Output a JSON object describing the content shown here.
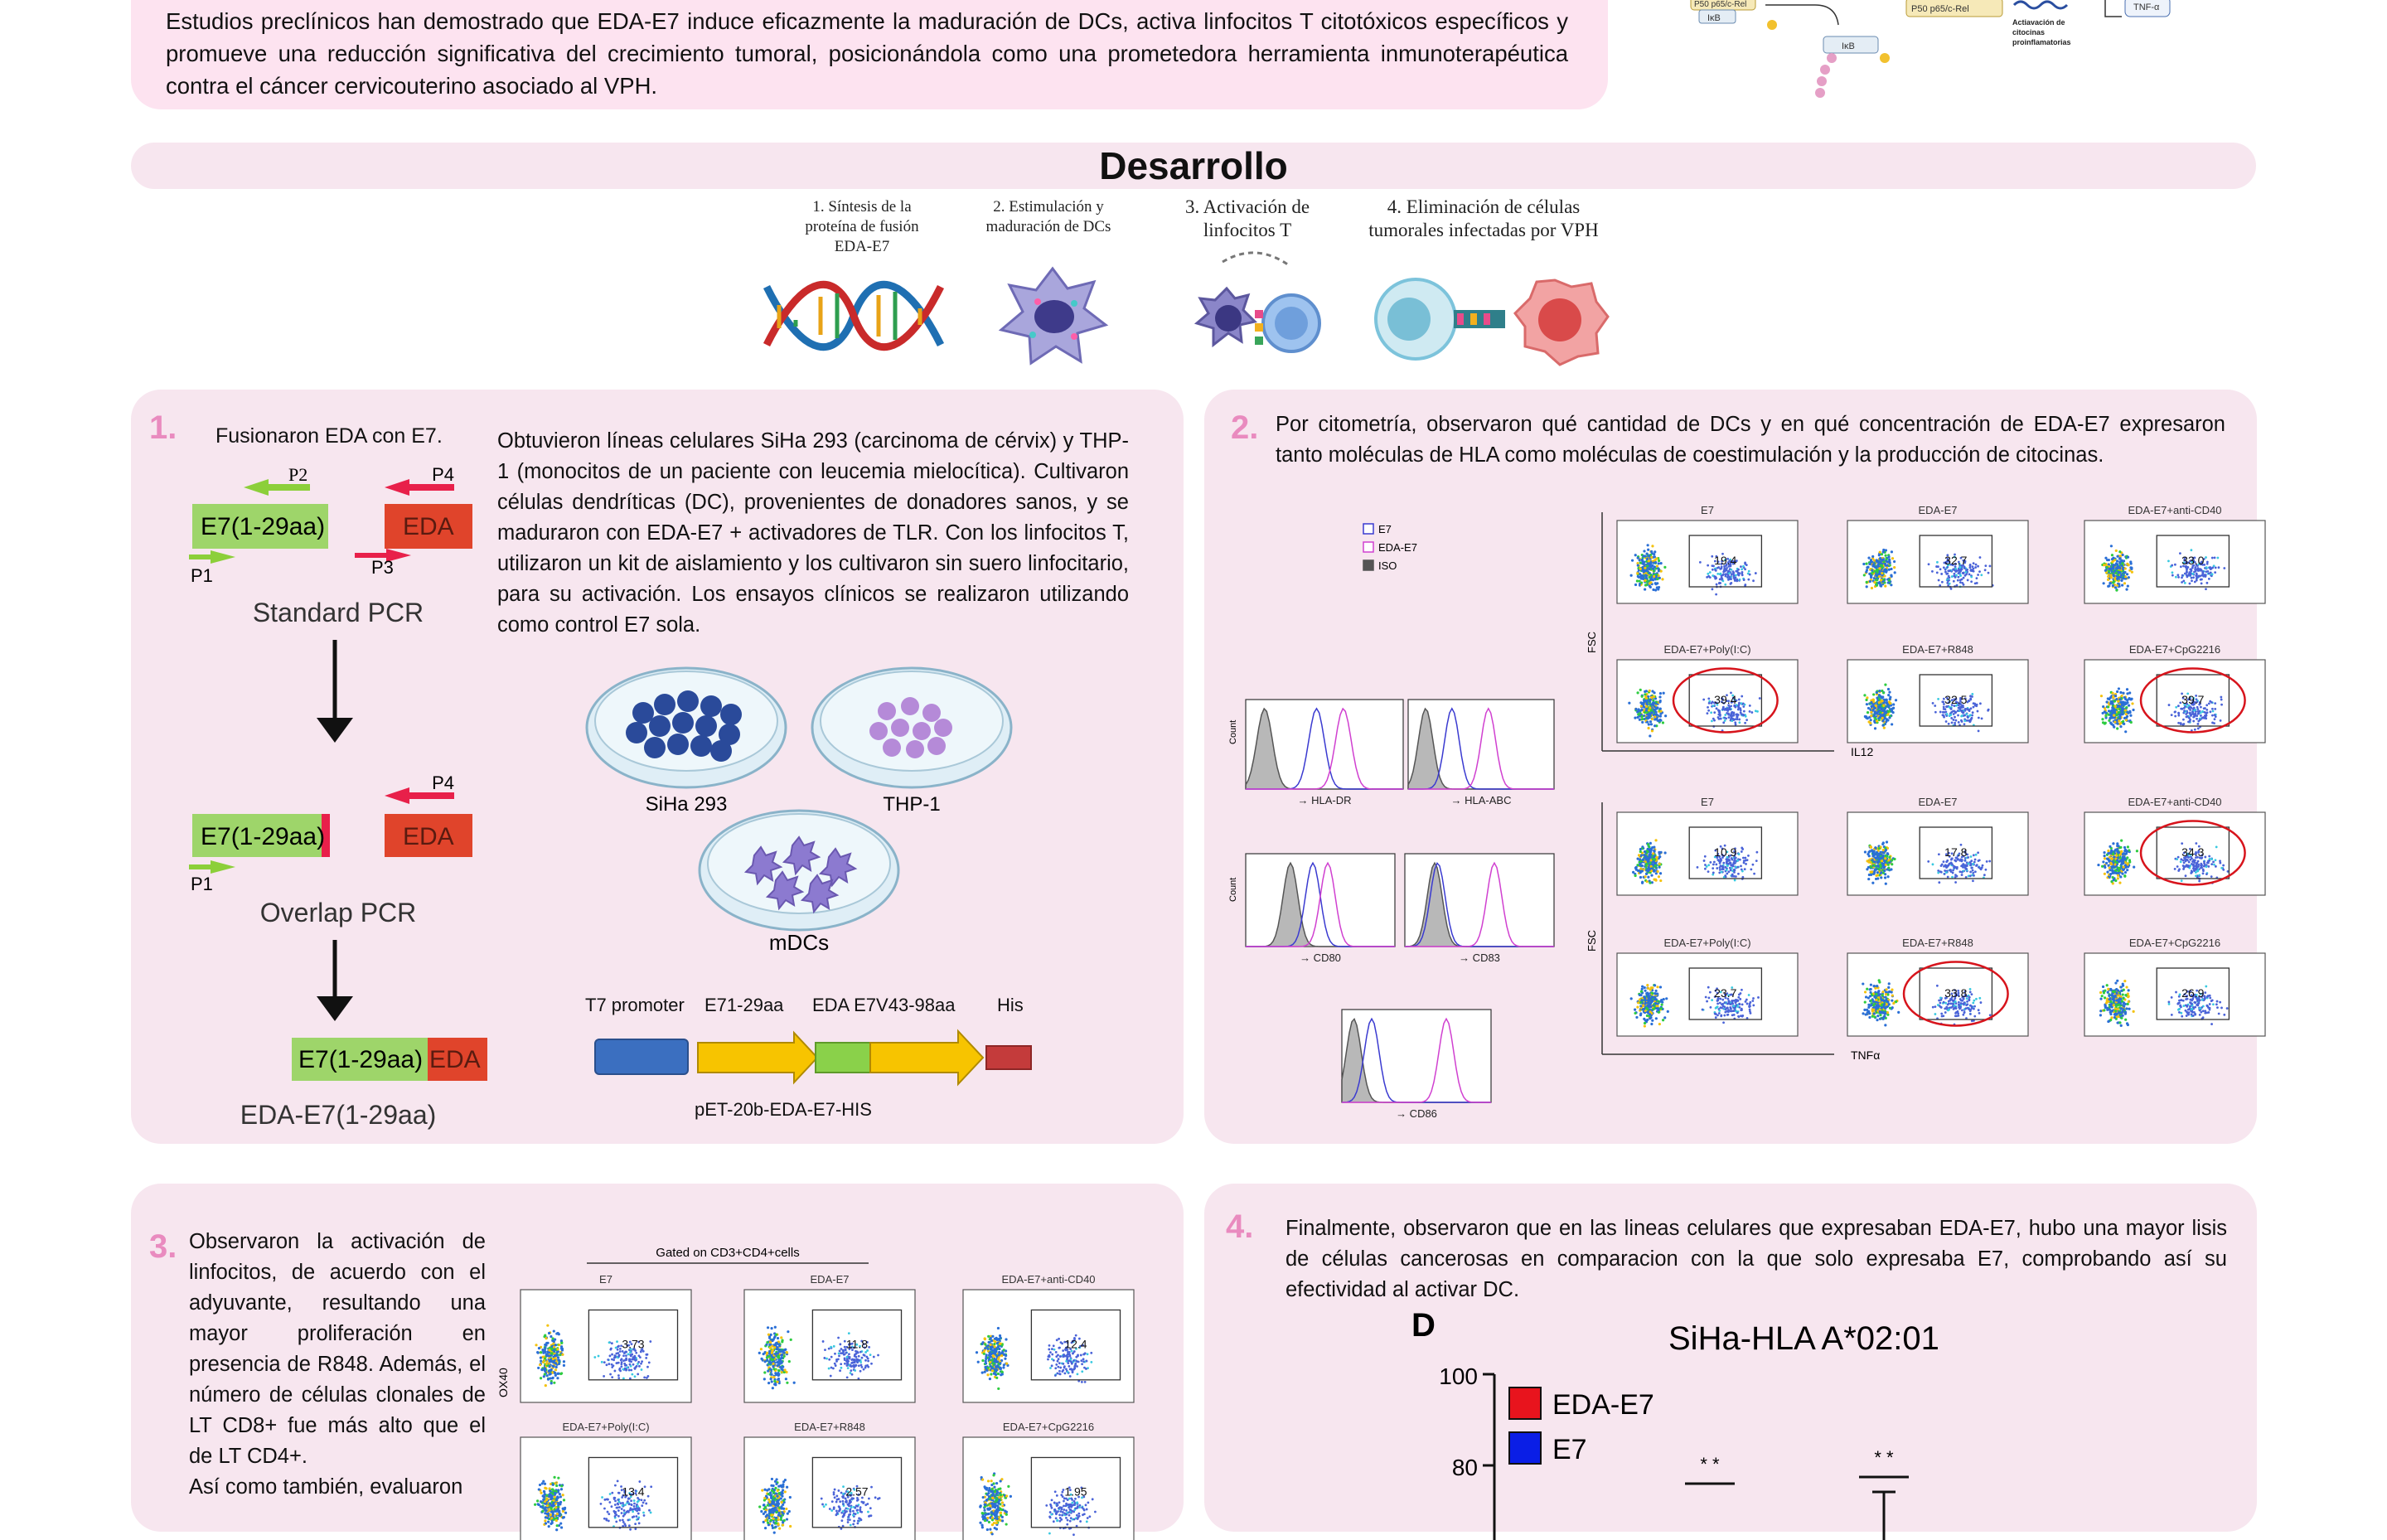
{
  "intro": {
    "text": "Estudios preclínicos han demostrado que EDA-E7 induce eficazmente la maduración de DCs, activa linfocitos T citotóxicos específicos y promueve una reducción significativa del crecimiento tumoral, posicionándola como una prometedora herramienta inmunoterapéutica contra el cáncer cervicouterino asociado al VPH."
  },
  "pathway": {
    "p50p65": "P50 p65/c-Rel",
    "ikb1": "IκB",
    "ikb2": "IκB",
    "tnf": "TNF-α",
    "cytokines": "Actiavación de citocinas proinflamatorias",
    "top_left": "P50 p65/c-Rel"
  },
  "section": {
    "title": "Desarrollo"
  },
  "steps": [
    {
      "label": "1. Síntesis de la proteína de fusión EDA-E7"
    },
    {
      "label": "2. Estimulación y maduración de DCs"
    },
    {
      "label": "3. Activación de linfocitos T"
    },
    {
      "label": "4. Eliminación de células tumorales infectadas por VPH"
    }
  ],
  "panel1": {
    "number": "1.",
    "heading": "Fusionaron EDA con E7.",
    "body": "Obtuvieron líneas celulares SiHa 293 (carcinoma de cérvix) y THP-1 (monocitos de un paciente con leucemia mielocítica). Cultivaron células dendríticas (DC), provenientes de donadores sanos, y se maduraron con EDA-E7 + activadores de TLR. Con los linfocitos T, utilizaron un kit de aislamiento y los cultivaron sin suero linfocitario, para su activación. Los ensayos clínicos se realizaron utilizando como control E7 sola.",
    "pcr": {
      "e7": "E7(1-29aa)",
      "eda": "EDA",
      "p1": "P1",
      "p2": "P2",
      "p3": "P3",
      "p4": "P4",
      "standard": "Standard PCR",
      "overlap": "Overlap PCR",
      "fusion": "EDA-E7(1-29aa)"
    },
    "dishes": {
      "siha": "SiHa 293",
      "thp": "THP-1",
      "mdc": "mDCs"
    },
    "construct": {
      "t7": "T7 promoter",
      "e7": "E71-29aa",
      "eda": "EDA E7V43-98aa",
      "his": "His",
      "plasmid": "pET-20b-EDA-E7-HIS"
    }
  },
  "panel2": {
    "number": "2.",
    "body": "Por citometría, observaron qué cantidad de DCs y en qué concentración de EDA-E7 expresaron tanto moléculas de HLA como moléculas de coestimulación y la producción de citocinas.",
    "legend": [
      "E7",
      "EDA-E7",
      "ISO"
    ],
    "histograms": [
      "HLA-DR",
      "HLA-ABC",
      "CD80",
      "CD83",
      "CD86"
    ],
    "count_label": "Count",
    "fsc_label": "FSC",
    "il12_axis": "IL12",
    "tnf_axis": "TNFα",
    "il12_plots": [
      {
        "title": "E7",
        "value": "19.4"
      },
      {
        "title": "EDA-E7",
        "value": "32.7"
      },
      {
        "title": "EDA-E7+anti-CD40",
        "value": "33.0"
      },
      {
        "title": "EDA-E7+Poly(I:C)",
        "value": "39.4"
      },
      {
        "title": "EDA-E7+R848",
        "value": "32.5"
      },
      {
        "title": "EDA-E7+CpG2216",
        "value": "39.7"
      }
    ],
    "tnf_plots": [
      {
        "title": "E7",
        "value": "10.9"
      },
      {
        "title": "EDA-E7",
        "value": "17.8"
      },
      {
        "title": "EDA-E7+anti-CD40",
        "value": "34.3"
      },
      {
        "title": "EDA-E7+Poly(I:C)",
        "value": "23.7"
      },
      {
        "title": "EDA-E7+R848",
        "value": "33.8"
      },
      {
        "title": "EDA-E7+CpG2216",
        "value": "26.9"
      }
    ]
  },
  "panel3": {
    "number": "3.",
    "body": "Observaron la activación de linfocitos, de acuerdo con el adyuvante, resultando una mayor proliferación en presencia de R848. Además, el número de células clonales de LT CD8+ fue más alto que el de LT CD4+.",
    "body_cont": "Así como también, evaluaron",
    "gated": "Gated on CD3+CD4+cells",
    "ox40": "OX40",
    "plots": [
      {
        "title": "E7",
        "value": "3.73"
      },
      {
        "title": "EDA-E7",
        "value": "11.8"
      },
      {
        "title": "EDA-E7+anti-CD40",
        "value": "12.4"
      },
      {
        "title": "EDA-E7+Poly(I:C)",
        "value": "13.4"
      },
      {
        "title": "EDA-E7+R848",
        "value": "2.57"
      },
      {
        "title": "EDA-E7+CpG2216",
        "value": "1.95"
      }
    ]
  },
  "panel4": {
    "number": "4.",
    "body": "Finalmente, observaron que en las lineas celulares que expresaban EDA-E7, hubo una mayor lisis de células cancerosas en comparacion con la que solo expresaba E7, comprobando así su efectividad al activar DC.",
    "chart_letter": "D",
    "chart_title": "SiHa-HLA A*02:01",
    "legend": [
      {
        "name": "EDA-E7",
        "color": "#e8141d"
      },
      {
        "name": "E7",
        "color": "#0a1ee6"
      }
    ],
    "ticks": [
      "100",
      "80"
    ],
    "sig": [
      "* *",
      "* *"
    ]
  },
  "colors": {
    "pink_panel": "#f7e6ef",
    "pink_intro": "#fde3f0",
    "number_pink": "#e98bbf",
    "e7_green": "#9ed56a",
    "eda_red": "#e0442b",
    "construct_blue": "#3b6fc0",
    "construct_yellow": "#f7c400",
    "construct_green": "#8ad14a",
    "construct_red": "#c43b3b",
    "highlight_red": "#d7141c"
  }
}
